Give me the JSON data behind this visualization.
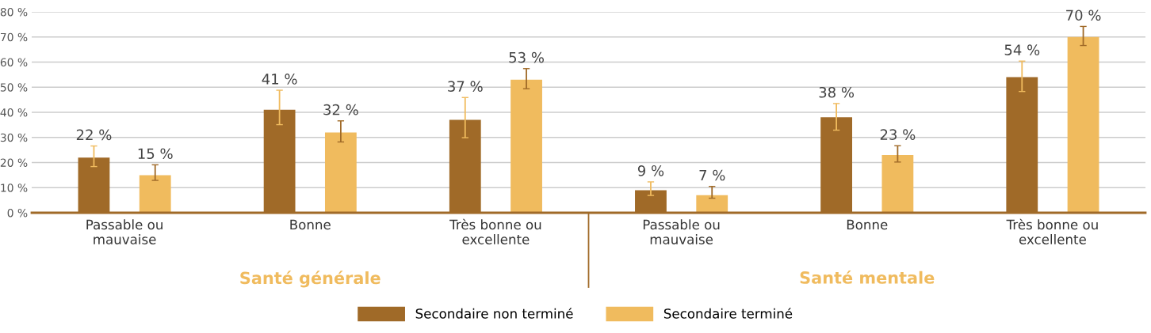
{
  "chart_data": {
    "type": "bar",
    "categories": [
      "Passable ou\nmauvaise",
      "Bonne",
      "Très bonne ou\nexcellente",
      "Passable ou\nmauvaise",
      "Bonne",
      "Très bonne ou\nexcellente"
    ],
    "series": [
      {
        "name": "Secondaire non terminé",
        "color": "#a06a28",
        "values": [
          22,
          41,
          37,
          9,
          38,
          54
        ],
        "errors": [
          [
            18.4,
            26.6
          ],
          [
            35.1,
            48.8
          ],
          [
            29.9,
            45.9
          ],
          [
            6.9,
            12.3
          ],
          [
            32.9,
            43.5
          ],
          [
            48.3,
            60.4
          ]
        ],
        "value_labels": [
          "22 %",
          "41 %",
          "37 %",
          "9 %",
          "38 %",
          "54 %"
        ]
      },
      {
        "name": "Secondaire terminé",
        "color": "#f0bb5e",
        "values": [
          15,
          32,
          53,
          7,
          23,
          70
        ],
        "errors": [
          [
            12.9,
            19.1
          ],
          [
            28.2,
            36.6
          ],
          [
            49.4,
            57.4
          ],
          [
            5.8,
            10.5
          ],
          [
            20.2,
            26.7
          ],
          [
            66.6,
            74.2
          ]
        ],
        "value_labels": [
          "15 %",
          "32 %",
          "53 %",
          "7 %",
          "23 %",
          "70 %"
        ]
      }
    ],
    "ylim": [
      0,
      80
    ],
    "yticks": [
      {
        "value": 0,
        "label": "0 %"
      },
      {
        "value": 10,
        "label": "10 %"
      },
      {
        "value": 20,
        "label": "20 %"
      },
      {
        "value": 30,
        "label": "30 %"
      },
      {
        "value": 40,
        "label": "40 %"
      },
      {
        "value": 50,
        "label": "50 %"
      },
      {
        "value": 60,
        "label": "60 %"
      },
      {
        "value": 70,
        "label": "70 %"
      },
      {
        "value": 80,
        "label": "80 %"
      }
    ],
    "annotations": [
      "Santé générale",
      "Santé mentale"
    ],
    "grid": "y",
    "legend": "bottom"
  }
}
